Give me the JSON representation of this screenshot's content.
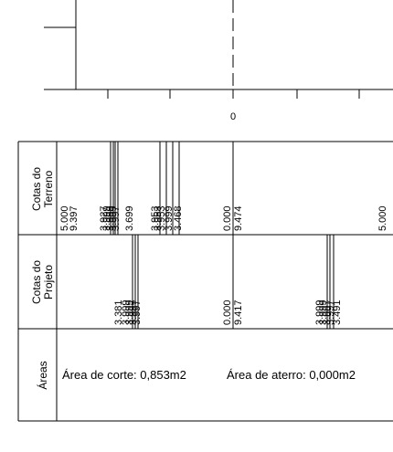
{
  "profile": {
    "axis_label": "0"
  },
  "table": {
    "rows": [
      {
        "key": "terreno",
        "label_line1": "Cotas do",
        "label_line2": "Terreno"
      },
      {
        "key": "projeto",
        "label_line1": "Cotas do",
        "label_line2": "Projeto"
      },
      {
        "key": "areas",
        "label_line1": "Áreas",
        "label_line2": ""
      }
    ],
    "terreno_values": [
      "5.000",
      "9.397",
      "3.927",
      "3.999",
      "3.999",
      "3.999",
      "3.997",
      "3.699",
      "3.953",
      "3.953",
      "3.953",
      "3.999",
      "3.468",
      "0.000",
      "9.474",
      "5.000"
    ],
    "projeto_values": [
      "3.381",
      "3.999",
      "3.999",
      "3.997",
      "3.997",
      "0.000",
      "9.417",
      "3.999",
      "3.999",
      "3.997",
      "3.997",
      "3.491"
    ],
    "area_corte": "Área de corte: 0,853m2",
    "area_aterro": "Área de aterro: 0,000m2"
  }
}
